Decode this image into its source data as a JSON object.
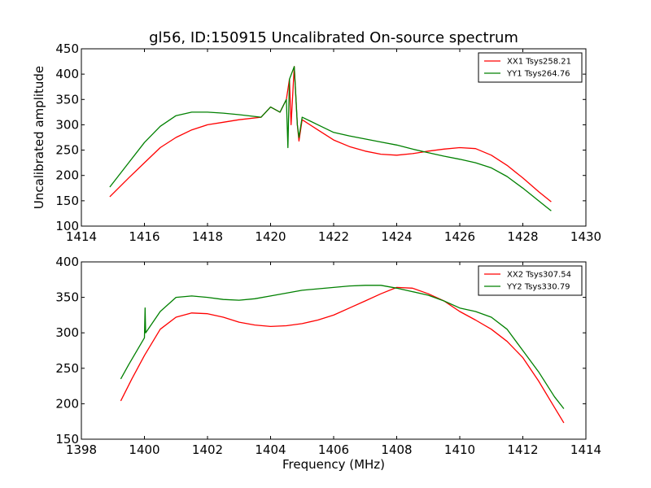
{
  "chart_data": [
    {
      "type": "line",
      "title": "gl56, ID:150915 Uncalibrated On-source spectrum",
      "xlabel": "",
      "ylabel": "Uncalibrated amplitude",
      "xlim": [
        1414,
        1430
      ],
      "ylim": [
        100,
        450
      ],
      "xticks": [
        "1414",
        "1416",
        "1418",
        "1420",
        "1422",
        "1424",
        "1426",
        "1428",
        "1430"
      ],
      "yticks": [
        "100",
        "150",
        "200",
        "250",
        "300",
        "350",
        "400",
        "450"
      ],
      "legend_position": "top-right",
      "grid": false,
      "series": [
        {
          "name": "XX1 Tsys258.21",
          "color": "#ff0000",
          "x": [
            1414.9,
            1415.5,
            1416,
            1416.5,
            1417,
            1417.5,
            1418,
            1418.5,
            1419,
            1419.7,
            1420,
            1420.3,
            1420.5,
            1420.6,
            1420.65,
            1420.75,
            1420.85,
            1420.9,
            1421,
            1421.5,
            1422,
            1422.5,
            1423,
            1423.5,
            1424,
            1424.5,
            1425,
            1425.5,
            1426,
            1426.5,
            1427,
            1427.5,
            1428,
            1428.5,
            1428.9
          ],
          "y": [
            158,
            195,
            225,
            255,
            275,
            290,
            300,
            305,
            310,
            315,
            335,
            325,
            350,
            390,
            300,
            415,
            300,
            268,
            310,
            290,
            270,
            257,
            248,
            242,
            240,
            243,
            248,
            252,
            255,
            253,
            240,
            220,
            195,
            168,
            148
          ]
        },
        {
          "name": "YY1 Tsys264.76",
          "color": "#008000",
          "x": [
            1414.9,
            1415.5,
            1416,
            1416.5,
            1417,
            1417.5,
            1418,
            1418.5,
            1419,
            1419.7,
            1420,
            1420.3,
            1420.5,
            1420.55,
            1420.6,
            1420.75,
            1420.85,
            1420.9,
            1421,
            1421.5,
            1422,
            1422.5,
            1423,
            1423.5,
            1424,
            1424.5,
            1425,
            1425.5,
            1426,
            1426.5,
            1427,
            1427.5,
            1428,
            1428.5,
            1428.9
          ],
          "y": [
            177,
            225,
            265,
            297,
            318,
            325,
            325,
            323,
            320,
            315,
            335,
            325,
            350,
            255,
            390,
            415,
            300,
            275,
            315,
            300,
            285,
            278,
            272,
            266,
            260,
            252,
            245,
            238,
            232,
            225,
            215,
            198,
            175,
            150,
            130
          ]
        }
      ]
    },
    {
      "type": "line",
      "title": "",
      "xlabel": "Frequency (MHz)",
      "ylabel": "",
      "xlim": [
        1398,
        1414
      ],
      "ylim": [
        150,
        400
      ],
      "xticks": [
        "1398",
        "1400",
        "1402",
        "1404",
        "1406",
        "1408",
        "1410",
        "1412",
        "1414"
      ],
      "yticks": [
        "150",
        "200",
        "250",
        "300",
        "350",
        "400"
      ],
      "legend_position": "top-right",
      "grid": false,
      "series": [
        {
          "name": "XX2 Tsys307.54",
          "color": "#ff0000",
          "x": [
            1399.25,
            1399.6,
            1400,
            1400.5,
            1401,
            1401.5,
            1402,
            1402.5,
            1403,
            1403.5,
            1404,
            1404.5,
            1405,
            1405.5,
            1406,
            1406.5,
            1407,
            1407.5,
            1408,
            1408.5,
            1409,
            1409.5,
            1410,
            1410.5,
            1411,
            1411.5,
            1412,
            1412.5,
            1413,
            1413.3
          ],
          "y": [
            204,
            235,
            268,
            305,
            322,
            328,
            327,
            322,
            315,
            311,
            309,
            310,
            313,
            318,
            325,
            335,
            345,
            355,
            364,
            363,
            355,
            345,
            330,
            318,
            305,
            288,
            265,
            232,
            195,
            173
          ]
        },
        {
          "name": "YY2 Tsys330.79",
          "color": "#008000",
          "x": [
            1399.25,
            1399.5,
            1400,
            1400.02,
            1400.04,
            1400.5,
            1401,
            1401.5,
            1402,
            1402.5,
            1403,
            1403.5,
            1404,
            1404.5,
            1405,
            1405.5,
            1406,
            1406.5,
            1407,
            1407.5,
            1408,
            1408.5,
            1409,
            1409.5,
            1410,
            1410.5,
            1411,
            1411.5,
            1412,
            1412.5,
            1413,
            1413.3
          ],
          "y": [
            235,
            255,
            293,
            335,
            300,
            330,
            350,
            352,
            350,
            347,
            346,
            348,
            352,
            356,
            360,
            362,
            364,
            366,
            367,
            367,
            363,
            358,
            353,
            345,
            335,
            330,
            322,
            305,
            275,
            245,
            210,
            193
          ]
        }
      ]
    }
  ]
}
